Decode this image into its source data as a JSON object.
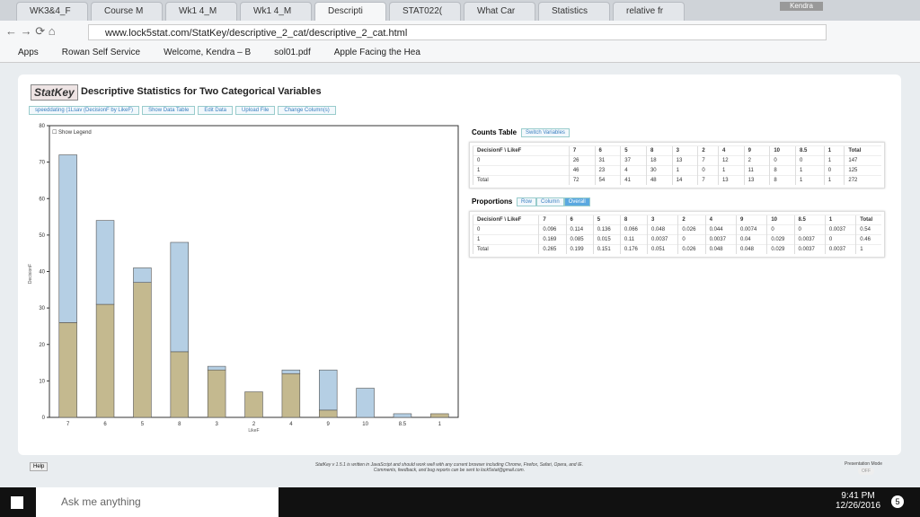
{
  "browser": {
    "tabs": [
      "WK3&4_F",
      "Course M",
      "Wk1 4_M",
      "Wk1 4_M",
      "Descripti",
      "STAT022(",
      "What Car",
      "Statistics",
      "relative fr"
    ],
    "profile": "Kendra",
    "url": "www.lock5stat.com/StatKey/descriptive_2_cat/descriptive_2_cat.html",
    "bookmarks": [
      "Apps",
      "Rowan Self Service",
      "Welcome, Kendra – B",
      "sol01.pdf",
      "Apple Facing the Hea"
    ]
  },
  "page": {
    "logo": "StatKey",
    "title": "Descriptive Statistics for Two Categorical Variables",
    "dataset": "speeddating (1Lsav (DecisionF by LikeF)",
    "buttons": [
      "Show Data Table",
      "Edit Data",
      "Upload File",
      "Change Column(s)"
    ],
    "show_legend": "Show Legend",
    "counts_title": "Counts Table",
    "switch": "Switch Variables",
    "proportions_title": "Proportions",
    "proportion_modes": [
      "Row",
      "Column",
      "Overall"
    ],
    "help": "Help",
    "footer": [
      "StatKey v 1.5.1 is written in JavaScript and should work well with any current browser including Chrome, Firefox, Safari, Opera, and IE.",
      "Comments, feedback, and bug reports can be sent to lock5stat@gmail.com."
    ],
    "presentation_mode": "Presentation Mode",
    "toggle": "OFF"
  },
  "chart": {
    "type": "bar",
    "stacked": true,
    "categories": [
      "7",
      "6",
      "5",
      "8",
      "3",
      "2",
      "4",
      "9",
      "10",
      "8.5",
      "1"
    ],
    "series": [
      {
        "color": "#c4b98f",
        "values": [
          26,
          31,
          37,
          18,
          13,
          7,
          12,
          2,
          0,
          0,
          1
        ]
      },
      {
        "color": "#b5cfe4",
        "values": [
          46,
          23,
          4,
          30,
          1,
          0,
          1,
          11,
          8,
          1,
          0
        ]
      }
    ],
    "ylim": [
      0,
      80
    ],
    "yticks": [
      0,
      10,
      20,
      30,
      40,
      50,
      60,
      70,
      80
    ],
    "x_label": "LikeF",
    "y_label": "DecisionF"
  },
  "counts_table": {
    "header": [
      "DecisionF \\ LikeF",
      "7",
      "6",
      "5",
      "8",
      "3",
      "2",
      "4",
      "9",
      "10",
      "8.5",
      "1",
      "Total"
    ],
    "rows": [
      [
        "0",
        26,
        31,
        37,
        18,
        13,
        7,
        12,
        2,
        0,
        0,
        1,
        147
      ],
      [
        "1",
        46,
        23,
        4,
        30,
        1,
        0,
        1,
        11,
        8,
        1,
        0,
        125
      ],
      [
        "Total",
        72,
        54,
        41,
        48,
        14,
        7,
        13,
        13,
        8,
        1,
        1,
        272
      ]
    ]
  },
  "proportions_table": {
    "header": [
      "DecisionF \\ LikeF",
      "7",
      "6",
      "5",
      "8",
      "3",
      "2",
      "4",
      "9",
      "10",
      "8.5",
      "1",
      "Total"
    ],
    "rows": [
      [
        "0",
        0.096,
        0.114,
        0.136,
        0.066,
        0.048,
        0.026,
        0.044,
        0.0074,
        0,
        0,
        0.0037,
        0.54
      ],
      [
        "1",
        0.169,
        0.085,
        0.015,
        0.11,
        0.0037,
        0,
        0.0037,
        0.04,
        0.029,
        0.0037,
        0,
        0.46
      ],
      [
        "Total",
        0.265,
        0.199,
        0.151,
        0.176,
        0.051,
        0.026,
        0.048,
        0.048,
        0.029,
        0.0037,
        0.0037,
        1
      ]
    ]
  },
  "taskbar": {
    "search": "Ask me anything",
    "time": "9:41 PM",
    "date": "12/26/2016",
    "notifications": "5"
  }
}
